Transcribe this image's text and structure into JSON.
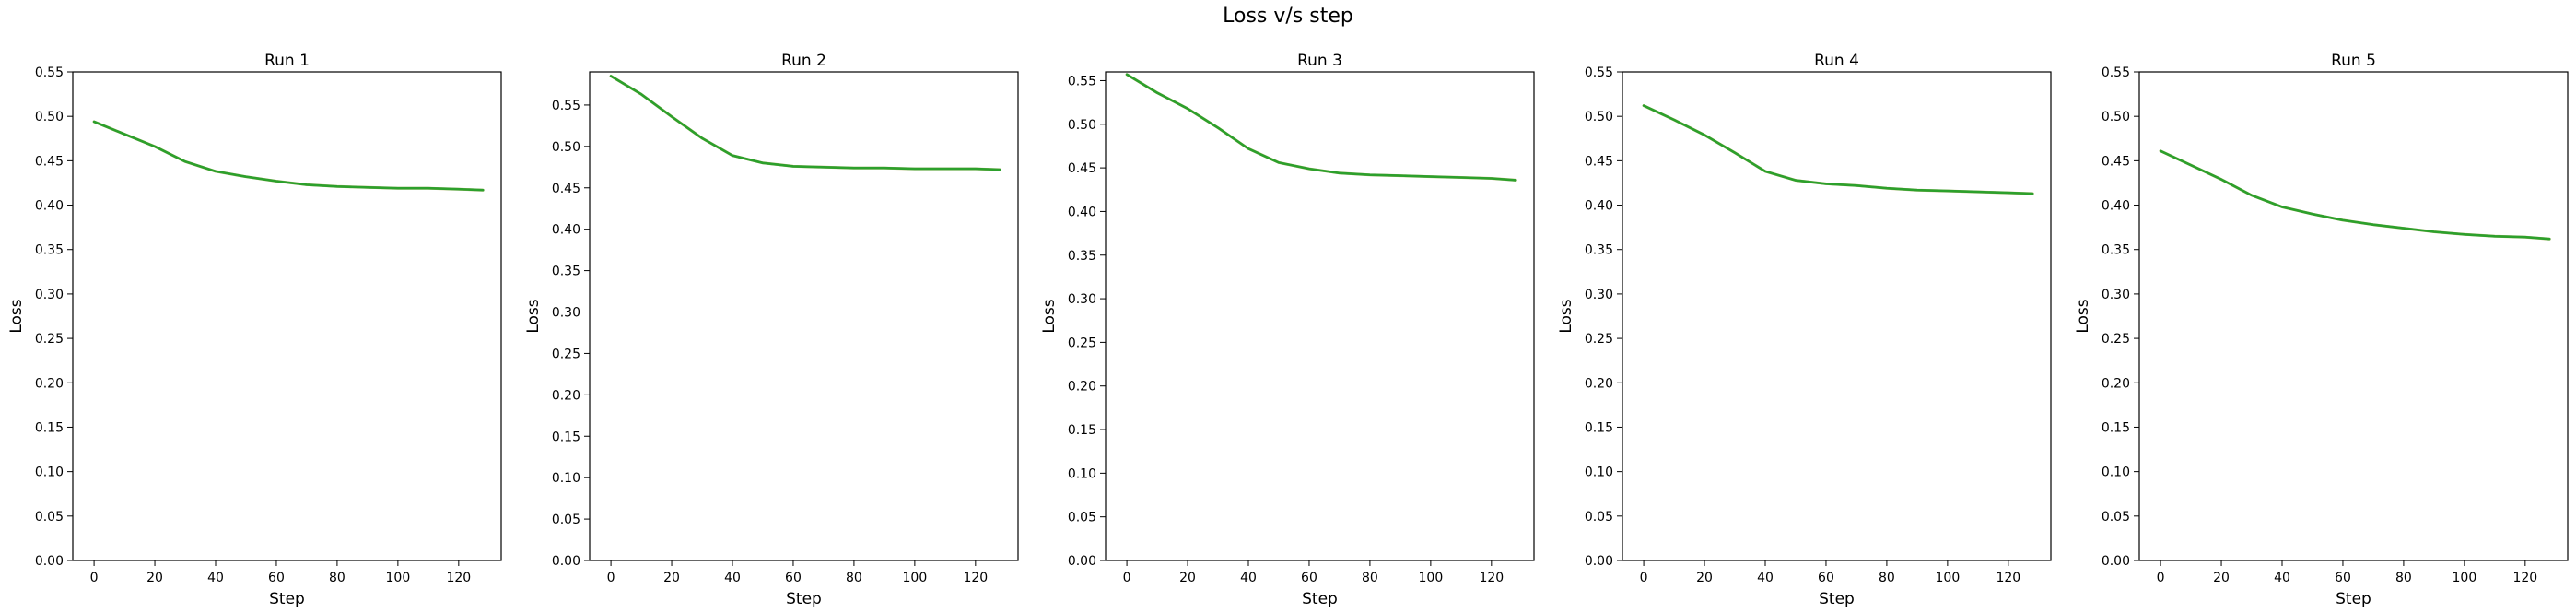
{
  "figure": {
    "title": "Loss v/s step"
  },
  "style": {
    "line_color": "#2ca02c",
    "line_color_2": "#7f7f00"
  },
  "chart_data": [
    {
      "type": "line",
      "title": "Run 1",
      "xlabel": "Step",
      "ylabel": "Loss",
      "xlim": [
        -7,
        134
      ],
      "ylim": [
        0,
        0.55
      ],
      "xticks": [
        0,
        20,
        40,
        60,
        80,
        100,
        120
      ],
      "yticks": [
        0.0,
        0.05,
        0.1,
        0.15,
        0.2,
        0.25,
        0.3,
        0.35,
        0.4,
        0.45,
        0.5,
        0.55
      ],
      "ytick_labels": [
        "0.00",
        "0.05",
        "0.10",
        "0.15",
        "0.20",
        "0.25",
        "0.30",
        "0.35",
        "0.40",
        "0.45",
        "0.50",
        "0.55"
      ],
      "series": [
        {
          "x": [
            0,
            10,
            20,
            30,
            40,
            50,
            60,
            70,
            80,
            90,
            100,
            110,
            120,
            128
          ],
          "y": [
            0.494,
            0.48,
            0.466,
            0.449,
            0.438,
            0.432,
            0.427,
            0.423,
            0.421,
            0.42,
            0.419,
            0.419,
            0.418,
            0.417
          ]
        }
      ]
    },
    {
      "type": "line",
      "title": "Run 2",
      "xlabel": "Step",
      "ylabel": "Loss",
      "xlim": [
        -7,
        134
      ],
      "ylim": [
        0,
        0.59
      ],
      "xticks": [
        0,
        20,
        40,
        60,
        80,
        100,
        120
      ],
      "yticks": [
        0.0,
        0.05,
        0.1,
        0.15,
        0.2,
        0.25,
        0.3,
        0.35,
        0.4,
        0.45,
        0.5,
        0.55
      ],
      "ytick_labels": [
        "0.00",
        "0.05",
        "0.10",
        "0.15",
        "0.20",
        "0.25",
        "0.30",
        "0.35",
        "0.40",
        "0.45",
        "0.50",
        "0.55"
      ],
      "series": [
        {
          "x": [
            0,
            10,
            20,
            30,
            40,
            50,
            60,
            70,
            80,
            90,
            100,
            110,
            120,
            128
          ],
          "y": [
            0.585,
            0.563,
            0.536,
            0.51,
            0.489,
            0.48,
            0.476,
            0.475,
            0.474,
            0.474,
            0.473,
            0.473,
            0.473,
            0.472
          ]
        }
      ]
    },
    {
      "type": "line",
      "title": "Run 3",
      "xlabel": "Step",
      "ylabel": "Loss",
      "xlim": [
        -7,
        134
      ],
      "ylim": [
        0,
        0.56
      ],
      "xticks": [
        0,
        20,
        40,
        60,
        80,
        100,
        120
      ],
      "yticks": [
        0.0,
        0.05,
        0.1,
        0.15,
        0.2,
        0.25,
        0.3,
        0.35,
        0.4,
        0.45,
        0.5,
        0.55
      ],
      "ytick_labels": [
        "0.00",
        "0.05",
        "0.10",
        "0.15",
        "0.20",
        "0.25",
        "0.30",
        "0.35",
        "0.40",
        "0.45",
        "0.50",
        "0.55"
      ],
      "series": [
        {
          "x": [
            0,
            10,
            20,
            30,
            40,
            50,
            60,
            70,
            80,
            90,
            100,
            110,
            120,
            128
          ],
          "y": [
            0.557,
            0.536,
            0.518,
            0.496,
            0.472,
            0.456,
            0.449,
            0.444,
            0.442,
            0.441,
            0.44,
            0.439,
            0.438,
            0.436
          ]
        }
      ]
    },
    {
      "type": "line",
      "title": "Run 4",
      "xlabel": "Step",
      "ylabel": "Loss",
      "xlim": [
        -7,
        134
      ],
      "ylim": [
        0,
        0.55
      ],
      "xticks": [
        0,
        20,
        40,
        60,
        80,
        100,
        120
      ],
      "yticks": [
        0.0,
        0.05,
        0.1,
        0.15,
        0.2,
        0.25,
        0.3,
        0.35,
        0.4,
        0.45,
        0.5,
        0.55
      ],
      "ytick_labels": [
        "0.00",
        "0.05",
        "0.10",
        "0.15",
        "0.20",
        "0.25",
        "0.30",
        "0.35",
        "0.40",
        "0.45",
        "0.50",
        "0.55"
      ],
      "series": [
        {
          "x": [
            0,
            10,
            20,
            30,
            40,
            50,
            60,
            70,
            80,
            90,
            100,
            110,
            120,
            128
          ],
          "y": [
            0.512,
            0.496,
            0.479,
            0.459,
            0.438,
            0.428,
            0.424,
            0.422,
            0.419,
            0.417,
            0.416,
            0.415,
            0.414,
            0.413
          ]
        }
      ]
    },
    {
      "type": "line",
      "title": "Run 5",
      "xlabel": "Step",
      "ylabel": "Loss",
      "xlim": [
        -7,
        134
      ],
      "ylim": [
        0,
        0.55
      ],
      "xticks": [
        0,
        20,
        40,
        60,
        80,
        100,
        120
      ],
      "yticks": [
        0.0,
        0.05,
        0.1,
        0.15,
        0.2,
        0.25,
        0.3,
        0.35,
        0.4,
        0.45,
        0.5,
        0.55
      ],
      "ytick_labels": [
        "0.00",
        "0.05",
        "0.10",
        "0.15",
        "0.20",
        "0.25",
        "0.30",
        "0.35",
        "0.40",
        "0.45",
        "0.50",
        "0.55"
      ],
      "series": [
        {
          "x": [
            0,
            10,
            20,
            30,
            40,
            50,
            60,
            70,
            80,
            90,
            100,
            110,
            120,
            128
          ],
          "y": [
            0.461,
            0.445,
            0.429,
            0.411,
            0.398,
            0.39,
            0.383,
            0.378,
            0.374,
            0.37,
            0.367,
            0.365,
            0.364,
            0.362
          ]
        }
      ]
    }
  ]
}
